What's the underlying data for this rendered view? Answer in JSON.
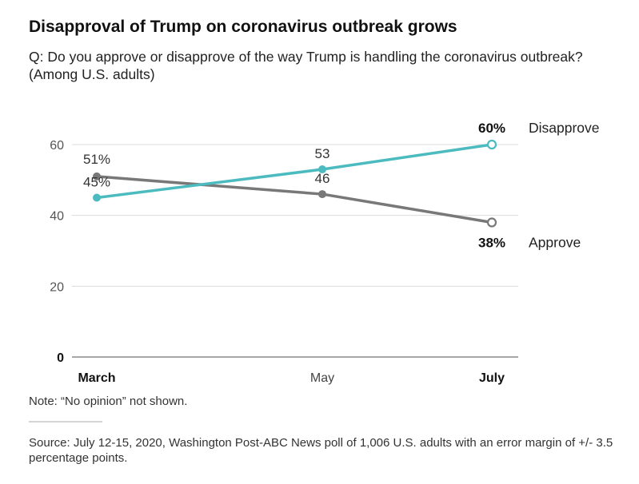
{
  "chart_data": {
    "type": "line",
    "title": "Disapproval of Trump on coronavirus outbreak grows",
    "subtitle": "Q: Do you approve or disapprove of the way Trump is handling the coronavirus outbreak? (Among U.S. adults)",
    "categories": [
      "March",
      "May",
      "July"
    ],
    "ylim": [
      0,
      60
    ],
    "yticks": [
      {
        "value": 0,
        "label": "0"
      },
      {
        "value": 20,
        "label": "20"
      },
      {
        "value": 40,
        "label": "40"
      },
      {
        "value": 60,
        "label": "60"
      }
    ],
    "series": [
      {
        "name": "Disapprove",
        "color": "#4cbbbf",
        "values": [
          45,
          53,
          60
        ],
        "labels": [
          "45%",
          "53",
          "60%"
        ]
      },
      {
        "name": "Approve",
        "color": "#787878",
        "values": [
          51,
          46,
          38
        ],
        "labels": [
          "51%",
          "46",
          "38%"
        ]
      }
    ]
  },
  "note": "Note: “No opinion” not shown.",
  "source": "Source: July 12-15, 2020, Washington Post-ABC News poll of 1,006 U.S. adults with an error margin of +/- 3.5 percentage points."
}
